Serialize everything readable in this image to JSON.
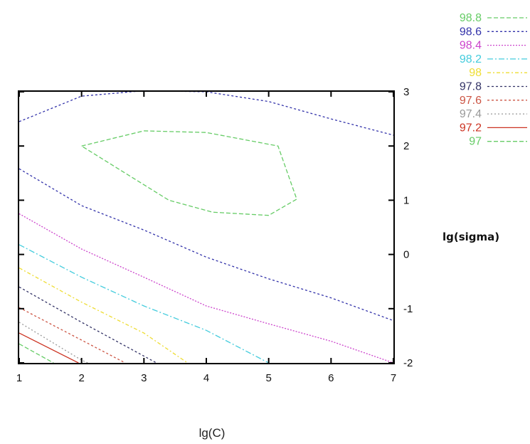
{
  "chart_data": {
    "type": "contour",
    "title": "",
    "xlabel": "lg(C)",
    "ylabel": "lg(sigma)",
    "xlim": [
      1,
      7
    ],
    "ylim": [
      -2,
      3
    ],
    "x_ticks": [
      "1",
      "2",
      "3",
      "4",
      "5",
      "6",
      "7"
    ],
    "y_ticks": [
      "3",
      "2",
      "1",
      "0",
      "-1",
      "-2"
    ],
    "grid": false,
    "legend_position": "top-right",
    "series": [
      {
        "name": "98.8",
        "color": "#66cc66",
        "dash": "6,3",
        "closed": true,
        "points": [
          [
            2.0,
            2.0
          ],
          [
            3.0,
            2.28
          ],
          [
            4.0,
            2.25
          ],
          [
            5.15,
            2.0
          ],
          [
            5.45,
            1.02
          ],
          [
            5.0,
            0.72
          ],
          [
            4.1,
            0.78
          ],
          [
            3.4,
            1.0
          ],
          [
            2.0,
            2.0
          ]
        ]
      },
      {
        "name": "98.6",
        "color": "#3333aa",
        "dash": "3,3",
        "closed": false,
        "points": [
          [
            1.0,
            2.45
          ],
          [
            2.0,
            2.92
          ],
          [
            3.0,
            3.02
          ],
          [
            4.0,
            3.0
          ],
          [
            5.0,
            2.82
          ],
          [
            6.0,
            2.5
          ],
          [
            7.0,
            2.2
          ]
        ]
      },
      {
        "name": "98.6",
        "color": "#3333aa",
        "dash": "3,3",
        "closed": false,
        "points": [
          [
            1.0,
            1.58
          ],
          [
            2.0,
            0.9
          ],
          [
            3.0,
            0.45
          ],
          [
            4.0,
            -0.05
          ],
          [
            5.0,
            -0.45
          ],
          [
            6.0,
            -0.8
          ],
          [
            7.0,
            -1.22
          ]
        ]
      },
      {
        "name": "98.4",
        "color": "#cc44cc",
        "dash": "2,2",
        "closed": false,
        "points": [
          [
            1.0,
            0.75
          ],
          [
            2.0,
            0.1
          ],
          [
            3.0,
            -0.42
          ],
          [
            4.0,
            -0.95
          ],
          [
            5.0,
            -1.28
          ],
          [
            6.0,
            -1.6
          ],
          [
            7.0,
            -2.0
          ]
        ]
      },
      {
        "name": "98.2",
        "color": "#44ccdd",
        "dash": "8,3,2,3",
        "closed": false,
        "points": [
          [
            1.0,
            0.18
          ],
          [
            2.0,
            -0.42
          ],
          [
            3.0,
            -0.95
          ],
          [
            4.0,
            -1.4
          ],
          [
            5.0,
            -2.0
          ]
        ]
      },
      {
        "name": "98",
        "color": "#eedd33",
        "dash": "5,3,2,3",
        "closed": false,
        "points": [
          [
            1.0,
            -0.25
          ],
          [
            2.0,
            -0.88
          ],
          [
            3.0,
            -1.45
          ],
          [
            3.7,
            -2.0
          ]
        ]
      },
      {
        "name": "97.8",
        "color": "#333366",
        "dash": "3,3",
        "closed": false,
        "points": [
          [
            1.0,
            -0.6
          ],
          [
            2.0,
            -1.25
          ],
          [
            3.2,
            -2.0
          ]
        ]
      },
      {
        "name": "97.6",
        "color": "#cc5544",
        "dash": "3,3",
        "closed": false,
        "points": [
          [
            1.0,
            -0.98
          ],
          [
            2.0,
            -1.58
          ],
          [
            2.7,
            -2.0
          ]
        ]
      },
      {
        "name": "97.4",
        "color": "#999999",
        "dash": "2,3",
        "closed": false,
        "points": [
          [
            1.0,
            -1.25
          ],
          [
            2.0,
            -1.95
          ],
          [
            2.1,
            -2.0
          ]
        ]
      },
      {
        "name": "97.2",
        "color": "#cc3322",
        "dash": "",
        "closed": false,
        "points": [
          [
            1.0,
            -1.45
          ],
          [
            1.95,
            -2.0
          ]
        ]
      },
      {
        "name": "97",
        "color": "#66cc66",
        "dash": "6,3",
        "closed": false,
        "points": [
          [
            1.0,
            -1.65
          ],
          [
            1.55,
            -2.0
          ]
        ]
      }
    ],
    "legend": [
      {
        "label": "98.8",
        "color": "#66cc66",
        "dash": "6,3"
      },
      {
        "label": "98.6",
        "color": "#3333aa",
        "dash": "3,3"
      },
      {
        "label": "98.4",
        "color": "#cc44cc",
        "dash": "2,2"
      },
      {
        "label": "98.2",
        "color": "#44ccdd",
        "dash": "8,3,2,3"
      },
      {
        "label": "98",
        "color": "#eedd33",
        "dash": "5,3,2,3"
      },
      {
        "label": "97.8",
        "color": "#333366",
        "dash": "3,3"
      },
      {
        "label": "97.6",
        "color": "#cc5544",
        "dash": "3,3"
      },
      {
        "label": "97.4",
        "color": "#999999",
        "dash": "2,3"
      },
      {
        "label": "97.2",
        "color": "#cc3322",
        "dash": ""
      },
      {
        "label": "97",
        "color": "#66cc66",
        "dash": "6,3"
      }
    ]
  }
}
